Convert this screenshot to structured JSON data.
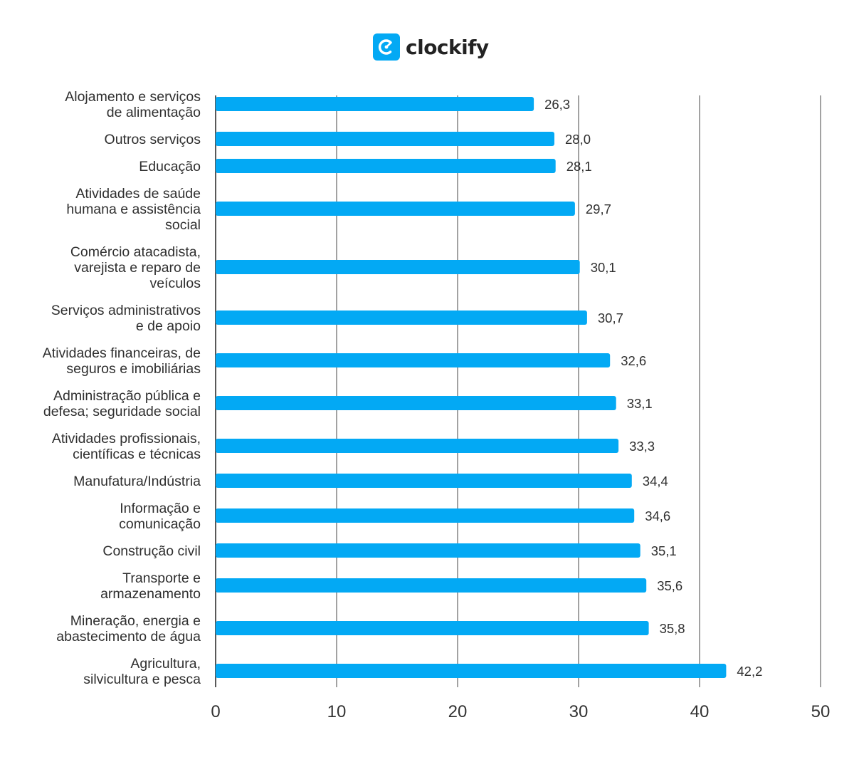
{
  "brand": {
    "name": "clockify",
    "icon": "clockify-logo-icon",
    "color": "#03a9f4"
  },
  "chart_data": {
    "type": "bar",
    "orientation": "horizontal",
    "title": "",
    "xlabel": "",
    "ylabel": "",
    "xlim": [
      0,
      50
    ],
    "ticks": [
      "0",
      "10",
      "20",
      "30",
      "40",
      "50"
    ],
    "grid": true,
    "bar_color": "#03a9f4",
    "categories": [
      [
        "Alojamento e serviços",
        "de alimentação"
      ],
      [
        "Outros serviços"
      ],
      [
        "Educação"
      ],
      [
        "Atividades de saúde",
        "humana e assistência",
        "social"
      ],
      [
        "Comércio atacadista,",
        "varejista e reparo de",
        "veículos"
      ],
      [
        "Serviços administrativos",
        "e de apoio"
      ],
      [
        "Atividades financeiras, de",
        "seguros e imobiliárias"
      ],
      [
        "Administração pública e",
        "defesa; seguridade social"
      ],
      [
        "Atividades profissionais,",
        "científicas e técnicas"
      ],
      [
        "Manufatura/Indústria"
      ],
      [
        "Informação e",
        "comunicação"
      ],
      [
        "Construção civil"
      ],
      [
        "Transporte e",
        "armazenamento"
      ],
      [
        "Mineração, energia e",
        "abastecimento de água"
      ],
      [
        "Agricultura,",
        "silvicultura e pesca"
      ]
    ],
    "values": [
      26.3,
      28.0,
      28.1,
      29.7,
      30.1,
      30.7,
      32.6,
      33.1,
      33.3,
      34.4,
      34.6,
      35.1,
      35.6,
      35.8,
      42.2
    ],
    "value_labels": [
      "26,3",
      "28,0",
      "28,1",
      "29,7",
      "30,1",
      "30,7",
      "32,6",
      "33,1",
      "33,3",
      "34,4",
      "34,6",
      "35,1",
      "35,6",
      "35,8",
      "42,2"
    ]
  }
}
